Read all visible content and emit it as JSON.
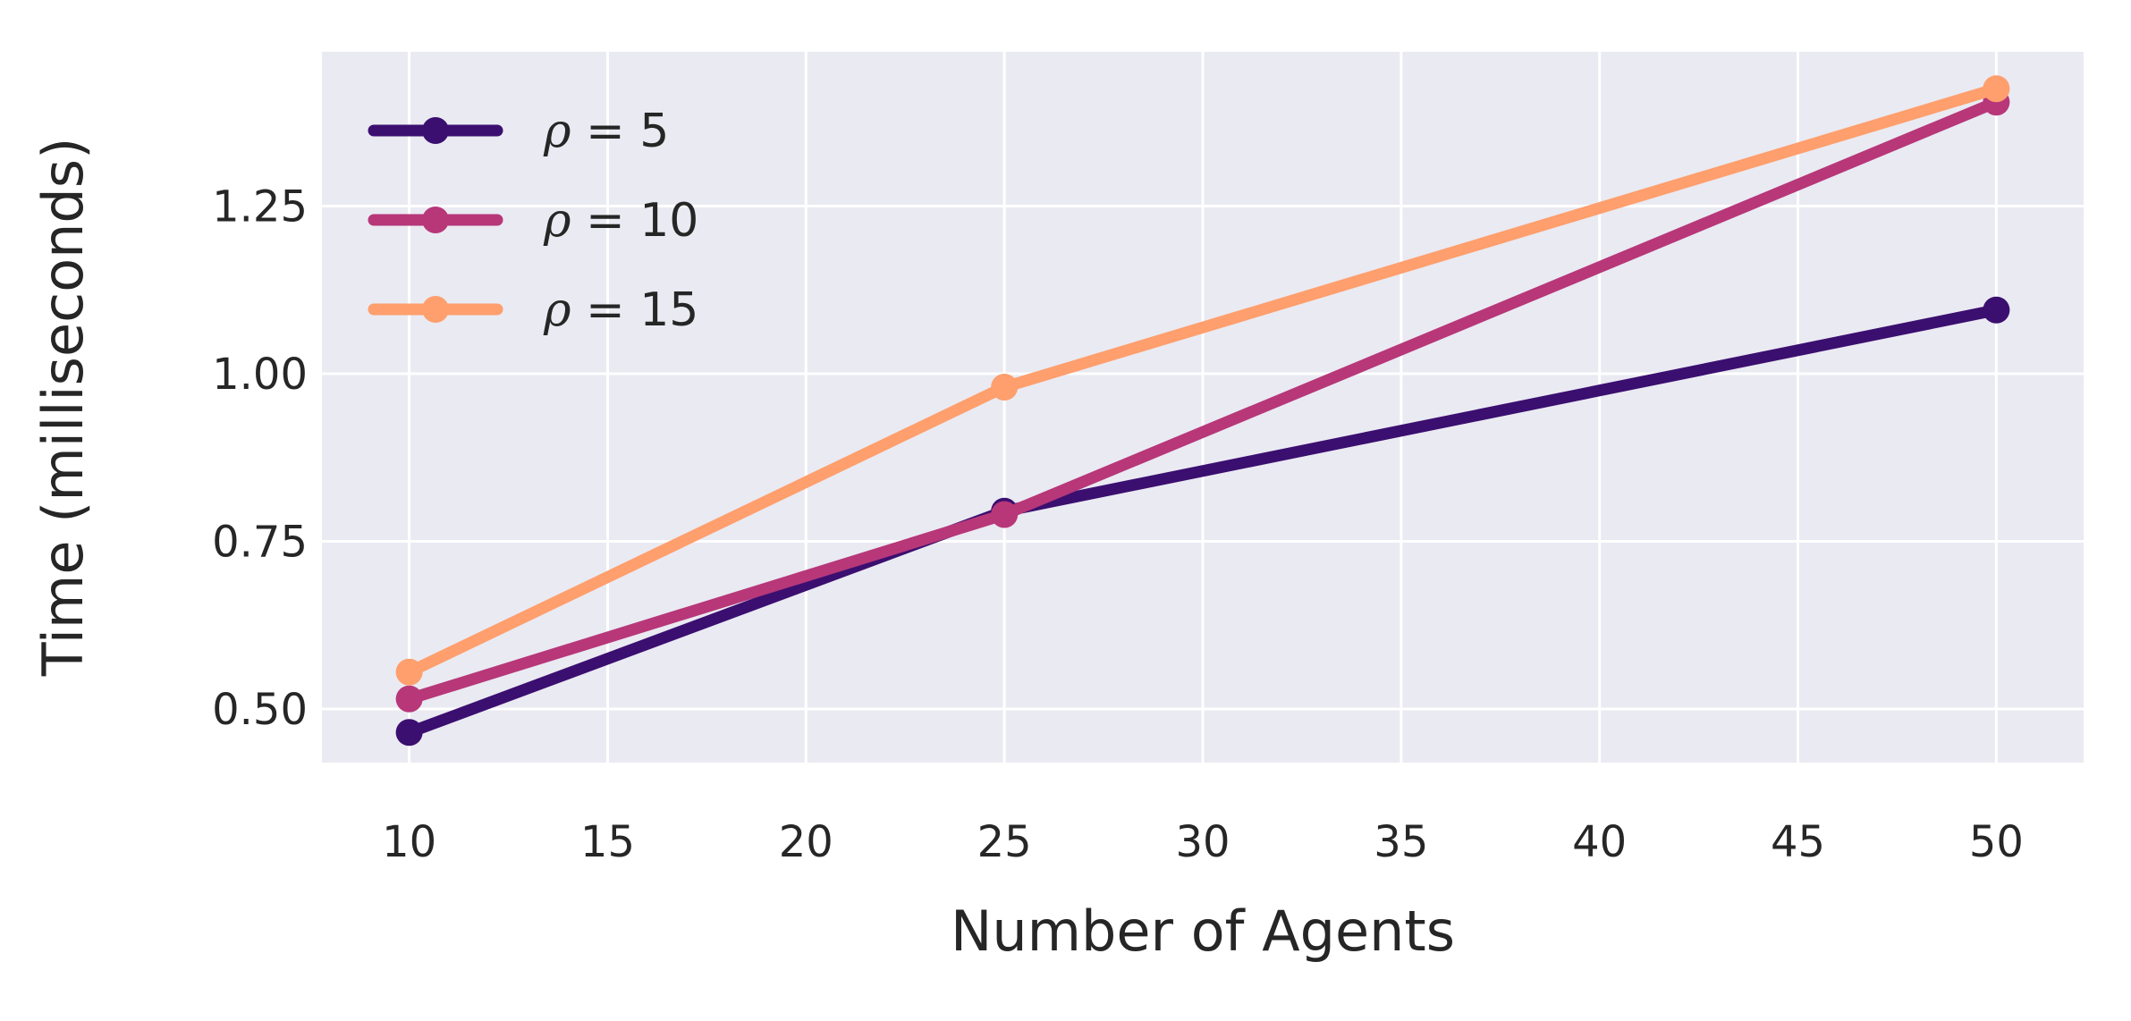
{
  "chart_data": {
    "type": "line",
    "xlabel": "Number of Agents",
    "ylabel": "Time (milliseconds)",
    "x": [
      10,
      25,
      50
    ],
    "xlim": [
      7.8,
      52.2
    ],
    "ylim": [
      0.42,
      1.48
    ],
    "xticks": [
      10,
      15,
      20,
      25,
      30,
      35,
      40,
      45,
      50
    ],
    "yticks": [
      0.5,
      0.75,
      1.0,
      1.25
    ],
    "xtick_labels": [
      "10",
      "15",
      "20",
      "25",
      "30",
      "35",
      "40",
      "45",
      "50"
    ],
    "ytick_labels": [
      "0.50",
      "0.75",
      "1.00",
      "1.25"
    ],
    "grid": true,
    "legend_position": "top-left",
    "series": [
      {
        "name_symbol": "ρ",
        "name_rest": " = 5",
        "color": "#3b0f70",
        "values": [
          0.465,
          0.795,
          1.095
        ]
      },
      {
        "name_symbol": "ρ",
        "name_rest": " = 10",
        "color": "#b73779",
        "values": [
          0.515,
          0.79,
          1.405
        ]
      },
      {
        "name_symbol": "ρ",
        "name_rest": " = 15",
        "color": "#fe9f6d",
        "values": [
          0.555,
          0.98,
          1.425
        ]
      }
    ],
    "colors": {
      "plot_background": "#eaeaf2",
      "grid": "#ffffff",
      "text": "#262626"
    }
  }
}
